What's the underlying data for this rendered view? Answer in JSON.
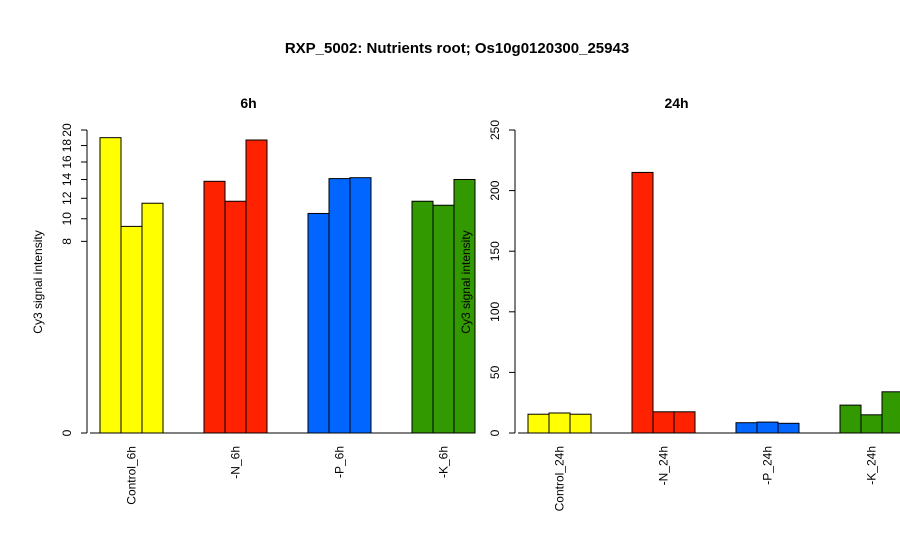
{
  "title": "RXP_5002: Nutrients root; Os10g0120300_25943",
  "chart_data": [
    {
      "type": "bar",
      "title": "6h",
      "ylabel": "Cy3 signal intensity",
      "y_scale": "sqrt",
      "ylim": [
        0,
        20
      ],
      "y_ticks": [
        0,
        8,
        10,
        12,
        14,
        16,
        18,
        20
      ],
      "groups": [
        {
          "label": "Control_6h",
          "color": "#FFFF00",
          "values": [
            19.0,
            9.3,
            11.5
          ]
        },
        {
          "label": "-N_6h",
          "color": "#FF2200",
          "values": [
            13.8,
            11.7,
            18.7
          ]
        },
        {
          "label": "-P_6h",
          "color": "#0066FF",
          "values": [
            10.5,
            14.1,
            14.2
          ]
        },
        {
          "label": "-K_6h",
          "color": "#339900",
          "values": [
            11.7,
            11.3,
            14.0
          ]
        }
      ]
    },
    {
      "type": "bar",
      "title": "24h",
      "ylabel": "Cy3 signal intensity",
      "y_scale": "linear",
      "ylim": [
        0,
        250
      ],
      "y_ticks": [
        0,
        50,
        100,
        150,
        200,
        250
      ],
      "groups": [
        {
          "label": "Control_24h",
          "color": "#FFFF00",
          "values": [
            15.5,
            16.5,
            15.5
          ]
        },
        {
          "label": "-N_24h",
          "color": "#FF2200",
          "values": [
            215,
            17.5,
            17.5
          ]
        },
        {
          "label": "-P_24h",
          "color": "#0066FF",
          "values": [
            8.5,
            9.0,
            8.0
          ]
        },
        {
          "label": "-K_24h",
          "color": "#339900",
          "values": [
            23,
            15,
            34
          ]
        }
      ]
    }
  ]
}
